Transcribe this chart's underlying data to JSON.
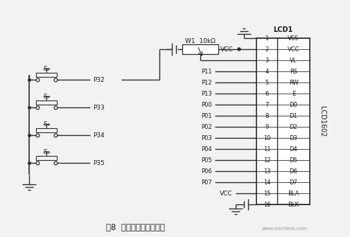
{
  "title": "图8  按键控制与显示电路",
  "bg_color": "#f2f2f2",
  "line_color": "#2a2a2a",
  "text_color": "#1a1a1a",
  "lcd_label": "LCD1",
  "lcd_model": "LCD1602",
  "pin_labels": [
    "VSS",
    "VCC",
    "VL",
    "RS",
    "RW",
    "E",
    "D0",
    "D1",
    "D2",
    "D3",
    "D4",
    "D5",
    "D6",
    "D7",
    "BLA",
    "BLK"
  ],
  "pin_numbers": [
    "1",
    "2",
    "3",
    "4",
    "5",
    "6",
    "7",
    "8",
    "9",
    "10",
    "11",
    "12",
    "13",
    "14",
    "15",
    "16"
  ],
  "pin_signals": [
    "",
    "",
    "",
    "P11",
    "P12",
    "P13",
    "P00",
    "P01",
    "P02",
    "P03",
    "P04",
    "P05",
    "P06",
    "P07",
    "",
    ""
  ],
  "switch_labels": [
    "S₂",
    "S₃",
    "S₄",
    "S₁"
  ],
  "port_labels": [
    "P32",
    "P33",
    "P34",
    "P35"
  ],
  "pot_label": "W1  10kΩ",
  "vcc_label": "VCC",
  "watermark": "www.elecfans.com"
}
